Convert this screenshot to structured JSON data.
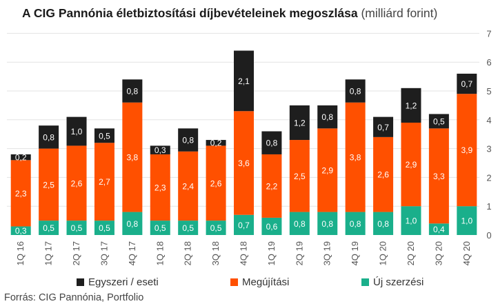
{
  "title": {
    "bold": "A CIG Pannónia életbiztosítási díjbevételeinek megoszlása",
    "light": "(milliárd forint)"
  },
  "source": "Forrás: CIG Pannónia, Portfolio",
  "colors": {
    "egyszeri": "#1e1e1e",
    "megujitasi": "#ff5000",
    "uj": "#1aaf8b",
    "grid": "#e3e3e3",
    "axis_text": "#555555"
  },
  "legend": [
    {
      "key": "egyszeri",
      "label": "Egyszeri / eseti"
    },
    {
      "key": "megujitasi",
      "label": "Megújítási"
    },
    {
      "key": "uj",
      "label": "Új szerzési"
    }
  ],
  "chart_data": {
    "type": "bar",
    "stacked": true,
    "categories": [
      "1Q 16",
      "1Q 17",
      "2Q 17",
      "3Q 17",
      "4Q 17",
      "1Q 18",
      "2Q 18",
      "3Q 18",
      "4Q 18",
      "1Q 19",
      "2Q 19",
      "3Q 19",
      "4Q 19",
      "1Q 20",
      "2Q 20",
      "3Q 20",
      "4Q 20"
    ],
    "series": [
      {
        "key": "uj",
        "name": "Új szerzési",
        "values": [
          0.3,
          0.5,
          0.5,
          0.5,
          0.8,
          0.5,
          0.5,
          0.5,
          0.7,
          0.6,
          0.8,
          0.8,
          0.8,
          0.8,
          1.0,
          0.4,
          1.0
        ],
        "labels": [
          "0,3",
          "0,5",
          "0,5",
          "0,5",
          "0,8",
          "0,5",
          "0,5",
          "0,5",
          "0,7",
          "0,6",
          "0,8",
          "0,8",
          "0,8",
          "0,8",
          "1,0",
          "0,4",
          "1,0"
        ]
      },
      {
        "key": "megujitasi",
        "name": "Megújítási",
        "values": [
          2.3,
          2.5,
          2.6,
          2.7,
          3.8,
          2.3,
          2.4,
          2.6,
          3.6,
          2.2,
          2.5,
          2.9,
          3.8,
          2.6,
          2.9,
          3.3,
          3.9
        ],
        "labels": [
          "2,3",
          "2,5",
          "2,6",
          "2,7",
          "3,8",
          "2,3",
          "2,4",
          "2,6",
          "3,6",
          "2,2",
          "2,5",
          "2,9",
          "3,8",
          "2,6",
          "2,9",
          "3,3",
          "3,9"
        ]
      },
      {
        "key": "egyszeri",
        "name": "Egyszeri / eseti",
        "values": [
          0.2,
          0.8,
          1.0,
          0.5,
          0.8,
          0.3,
          0.8,
          0.2,
          2.1,
          0.8,
          1.2,
          0.8,
          0.8,
          0.7,
          1.2,
          0.5,
          0.7
        ],
        "labels": [
          "0,2",
          "0,8",
          "1,0",
          "0,5",
          "0,8",
          "0,3",
          "0,8",
          "0,2",
          "2,1",
          "0,8",
          "1,2",
          "0,8",
          "0,8",
          "0,7",
          "1,2",
          "0,5",
          "0,7"
        ]
      }
    ],
    "yaxis": {
      "position": "right",
      "min": 0,
      "max": 7,
      "ticks": [
        "0",
        "1",
        "2",
        "3",
        "4",
        "5",
        "6",
        "7"
      ]
    },
    "grid": true,
    "legend_position": "bottom"
  }
}
